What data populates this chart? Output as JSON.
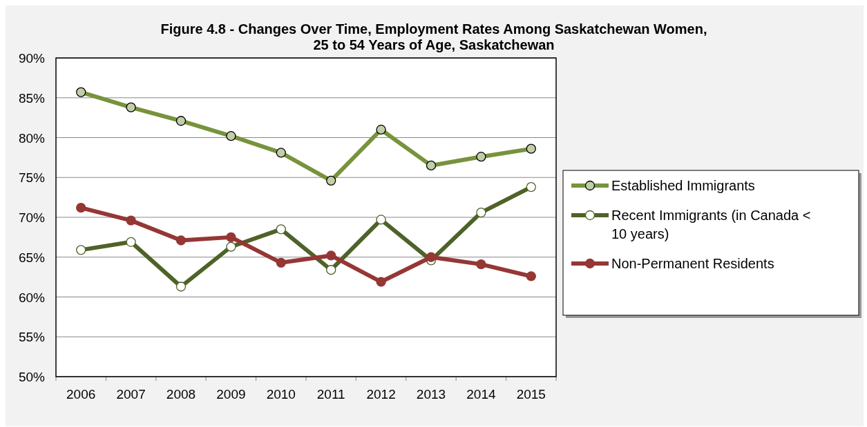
{
  "chart_data": {
    "type": "line",
    "title": "Figure 4.8 - Changes Over Time, Employment Rates Among Saskatchewan Women,\n25 to 54 Years of Age, Saskatchewan",
    "categories": [
      "2006",
      "2007",
      "2008",
      "2009",
      "2010",
      "2011",
      "2012",
      "2013",
      "2014",
      "2015"
    ],
    "series": [
      {
        "name": "Established Immigrants",
        "color": "#77933c",
        "values": [
          85.7,
          83.8,
          82.1,
          80.2,
          78.1,
          74.6,
          81.0,
          76.5,
          77.6,
          78.6
        ]
      },
      {
        "name": "Recent Immigrants (in Canada < 10 years)",
        "color": "#4f6228",
        "values": [
          65.9,
          66.9,
          61.3,
          66.3,
          68.5,
          63.4,
          69.7,
          64.6,
          70.6,
          73.8
        ]
      },
      {
        "name": "Non-Permanent Residents",
        "color": "#953735",
        "values": [
          71.2,
          69.6,
          67.1,
          67.5,
          64.3,
          65.2,
          61.9,
          65.0,
          64.1,
          62.6
        ]
      }
    ],
    "ylim": [
      50,
      90
    ],
    "yticks": [
      {
        "value": 50,
        "label": "50%"
      },
      {
        "value": 55,
        "label": "55%"
      },
      {
        "value": 60,
        "label": "60%"
      },
      {
        "value": 65,
        "label": "65%"
      },
      {
        "value": 70,
        "label": "70%"
      },
      {
        "value": 75,
        "label": "75%"
      },
      {
        "value": 80,
        "label": "80%"
      },
      {
        "value": 85,
        "label": "85%"
      },
      {
        "value": 90,
        "label": "90%"
      }
    ],
    "grid": "y",
    "legend": "right",
    "marker": "circle",
    "line_style": "solid"
  }
}
